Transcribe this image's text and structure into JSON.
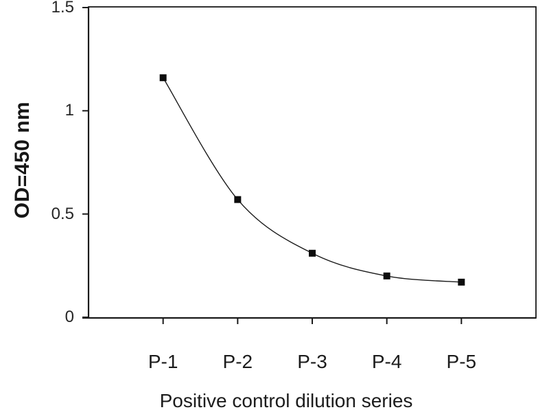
{
  "figure": {
    "background": "#ffffff",
    "ink_color": "#1a1a1a"
  },
  "chart_data": {
    "type": "line",
    "title": "",
    "xlabel": "Positive control dilution series",
    "ylabel": "OD=450 nm",
    "categories": [
      "P-1",
      "P-2",
      "P-3",
      "P-4",
      "P-5"
    ],
    "values": [
      1.16,
      0.57,
      0.31,
      0.2,
      0.17
    ],
    "ylim": [
      0,
      1.5
    ],
    "yticks": [
      0,
      0.5,
      1,
      1.5
    ],
    "ytick_labels": [
      "0",
      "0.5",
      "1",
      "1.5"
    ],
    "grid": false,
    "legend": "none",
    "frame": true,
    "smooth_line": true,
    "marker": "filled-square",
    "line_color": "#1a1a1a",
    "marker_color": "#0d0d0d"
  }
}
